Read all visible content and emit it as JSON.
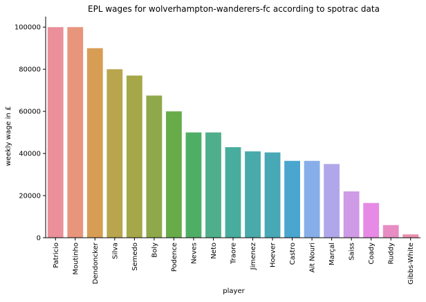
{
  "chart_data": {
    "type": "bar",
    "title": "EPL wages for wolverhampton-wanderers-fc according to spotrac data",
    "xlabel": "player",
    "ylabel": "weekly wage in £",
    "ylim": [
      0,
      105000
    ],
    "yticks": [
      0,
      20000,
      40000,
      60000,
      80000,
      100000
    ],
    "grid": false,
    "categories": [
      "Patricio",
      "Moutinho",
      "Dendoncker",
      "Silva",
      "Semedo",
      "Boly",
      "Podence",
      "Neves",
      "Neto",
      "Traore",
      "Jimenez",
      "Hoever",
      "Castro",
      "Ait Nouri",
      "Marçal",
      "Saiss",
      "Coady",
      "Ruddy",
      "Gibbs-White"
    ],
    "values": [
      100000,
      100000,
      90000,
      80000,
      77000,
      67500,
      60000,
      50000,
      50000,
      43000,
      41000,
      40500,
      36500,
      36500,
      35000,
      22000,
      16500,
      6000,
      1600
    ],
    "colors": [
      "#eb8f9a",
      "#e8957c",
      "#d89d54",
      "#b9a54e",
      "#a5a748",
      "#8fa84a",
      "#68ac4a",
      "#4fae66",
      "#4faf8b",
      "#48ad9e",
      "#48aaaa",
      "#48a8b6",
      "#4aa6cf",
      "#87aee8",
      "#b0a7ea",
      "#cf9ae6",
      "#e68ae5",
      "#e88cc4",
      "#ec8fb0"
    ]
  }
}
